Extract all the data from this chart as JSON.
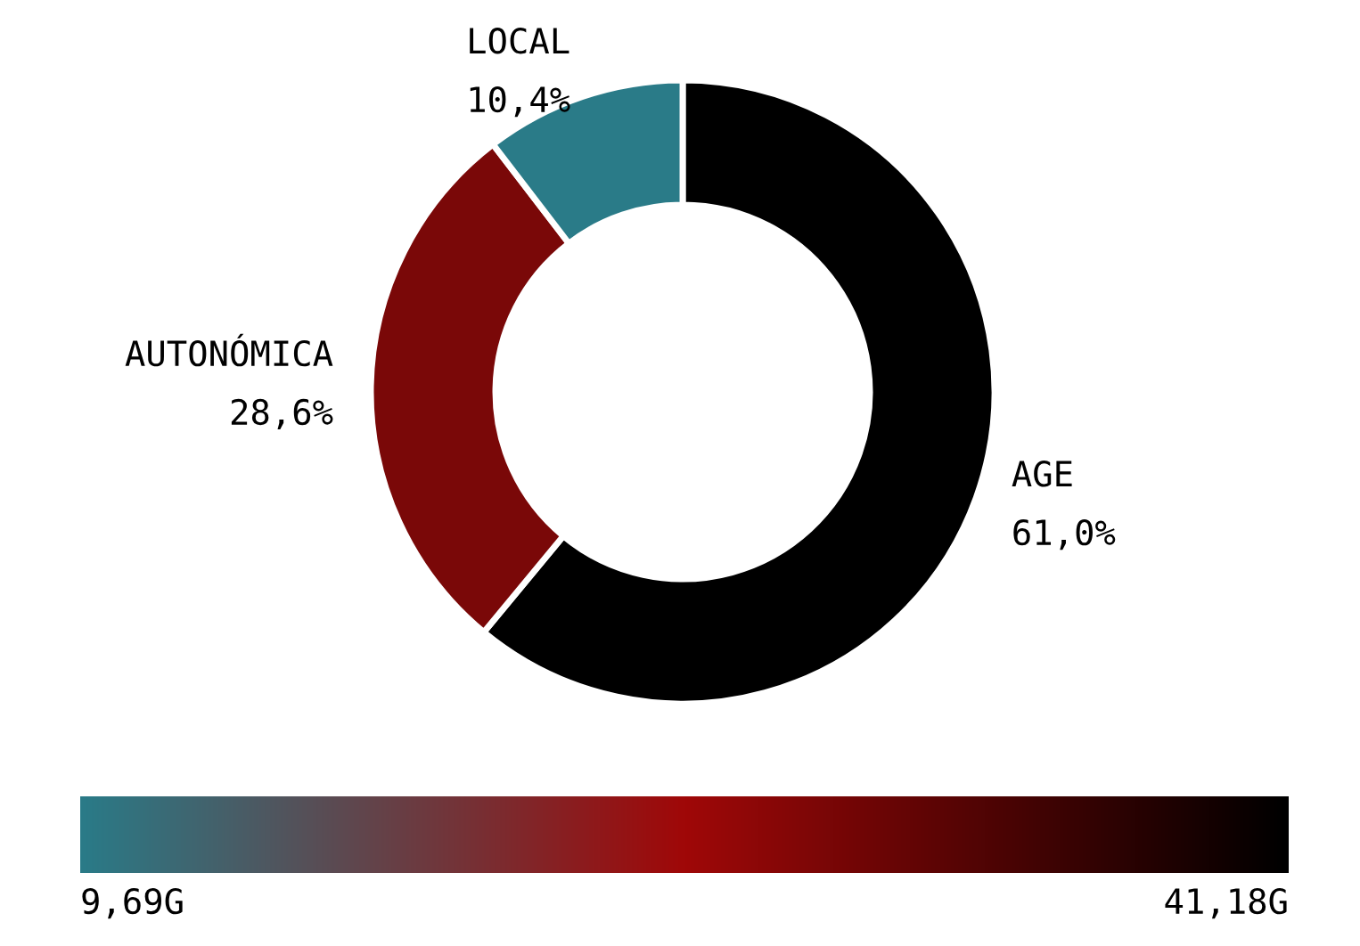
{
  "chart_data": {
    "type": "donut",
    "categories": [
      "AGE",
      "AUTONÓMICA",
      "LOCAL"
    ],
    "values": [
      61.0,
      28.6,
      10.4
    ],
    "value_labels": [
      "61,0%",
      "28,6%",
      "10,4%"
    ],
    "colors": [
      "#000000",
      "#7a0808",
      "#2a7b88"
    ],
    "annotations": [
      "9,69G",
      "41,18G"
    ]
  }
}
